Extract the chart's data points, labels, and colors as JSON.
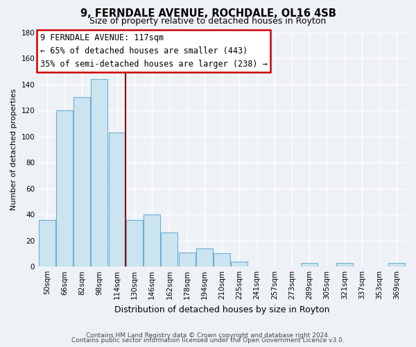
{
  "title": "9, FERNDALE AVENUE, ROCHDALE, OL16 4SB",
  "subtitle": "Size of property relative to detached houses in Royton",
  "xlabel": "Distribution of detached houses by size in Royton",
  "ylabel": "Number of detached properties",
  "bar_labels": [
    "50sqm",
    "66sqm",
    "82sqm",
    "98sqm",
    "114sqm",
    "130sqm",
    "146sqm",
    "162sqm",
    "178sqm",
    "194sqm",
    "210sqm",
    "225sqm",
    "241sqm",
    "257sqm",
    "273sqm",
    "289sqm",
    "305sqm",
    "321sqm",
    "337sqm",
    "353sqm",
    "369sqm"
  ],
  "bar_values": [
    36,
    120,
    130,
    144,
    103,
    36,
    40,
    26,
    11,
    14,
    10,
    4,
    0,
    0,
    0,
    3,
    0,
    3,
    0,
    0,
    3
  ],
  "bar_fill_color": "#cce4f0",
  "bar_edge_color": "#6ab0d4",
  "vline_color": "#8b0000",
  "vline_x_index": 4,
  "annotation_title": "9 FERNDALE AVENUE: 117sqm",
  "annotation_line1": "← 65% of detached houses are smaller (443)",
  "annotation_line2": "35% of semi-detached houses are larger (238) →",
  "annotation_box_facecolor": "#ffffff",
  "annotation_box_edgecolor": "#cc0000",
  "ylim": [
    0,
    180
  ],
  "yticks": [
    0,
    20,
    40,
    60,
    80,
    100,
    120,
    140,
    160,
    180
  ],
  "footer_line1": "Contains HM Land Registry data © Crown copyright and database right 2024.",
  "footer_line2": "Contains public sector information licensed under the Open Government Licence v3.0.",
  "background_color": "#eef2f7",
  "grid_color": "#ffffff",
  "title_fontsize": 10.5,
  "subtitle_fontsize": 9,
  "ylabel_fontsize": 8,
  "xlabel_fontsize": 9,
  "tick_fontsize": 7.5,
  "annotation_fontsize": 8.5,
  "footer_fontsize": 6.5,
  "fig_width": 6.0,
  "fig_height": 5.0
}
